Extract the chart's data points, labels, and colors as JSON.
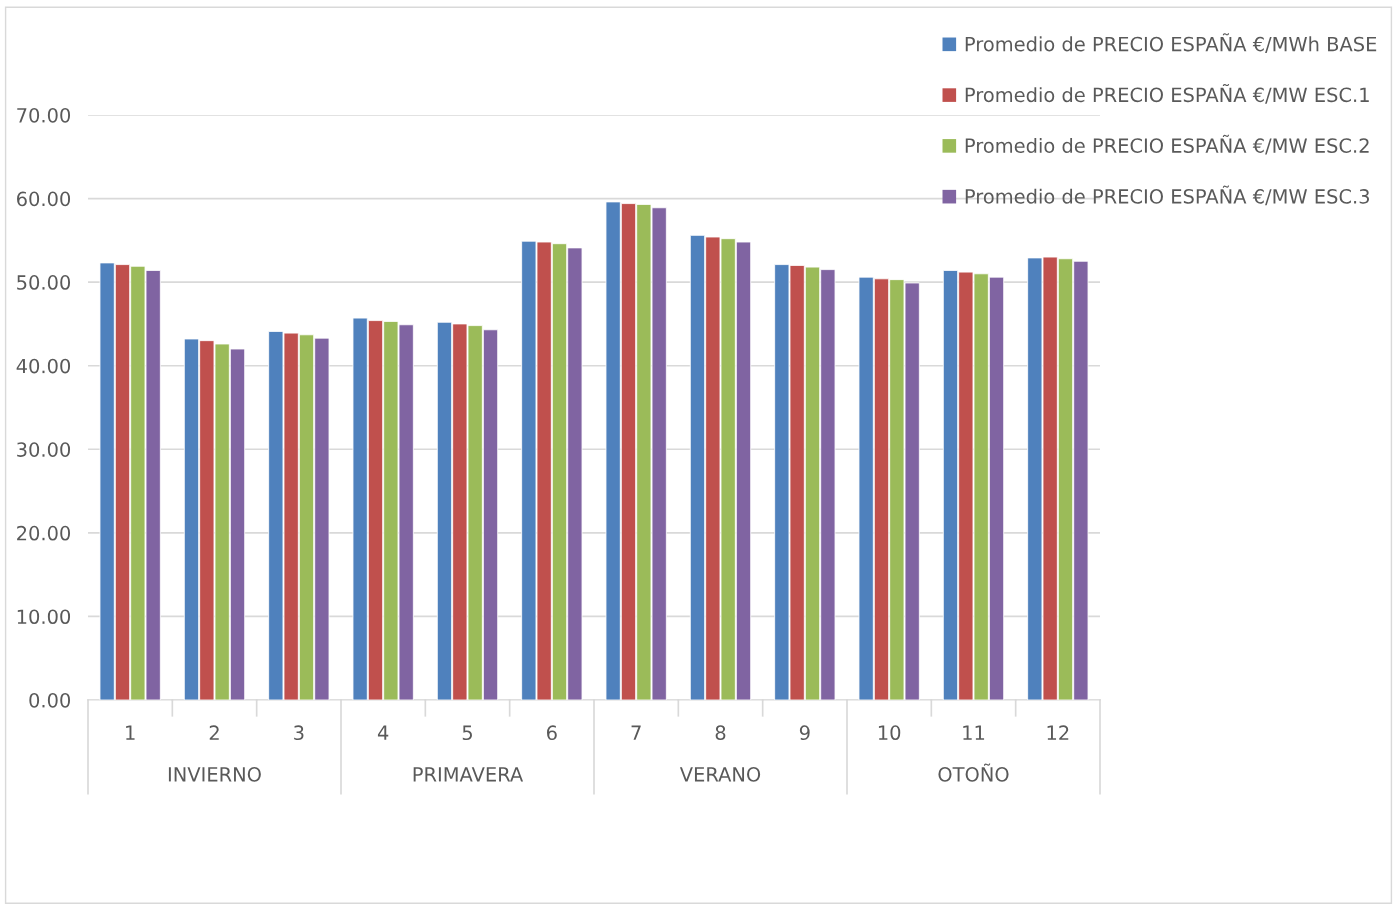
{
  "chart_data": {
    "type": "bar",
    "categories": [
      "1",
      "2",
      "3",
      "4",
      "5",
      "6",
      "7",
      "8",
      "9",
      "10",
      "11",
      "12"
    ],
    "series": [
      {
        "name": "Promedio de PRECIO ESPAÑA €/MWh BASE",
        "color": "#4f81bd",
        "values": [
          52.3,
          43.2,
          44.1,
          45.7,
          45.2,
          54.9,
          59.6,
          55.6,
          52.1,
          50.6,
          51.4,
          52.9
        ]
      },
      {
        "name": "Promedio de PRECIO ESPAÑA €/MW ESC.1",
        "color": "#c0504d",
        "values": [
          52.1,
          43.0,
          43.9,
          45.4,
          45.0,
          54.8,
          59.4,
          55.4,
          52.0,
          50.4,
          51.2,
          53.0
        ]
      },
      {
        "name": "Promedio de PRECIO ESPAÑA €/MW ESC.2",
        "color": "#9bbb59",
        "values": [
          51.9,
          42.6,
          43.7,
          45.3,
          44.8,
          54.6,
          59.3,
          55.2,
          51.8,
          50.3,
          51.0,
          52.8
        ]
      },
      {
        "name": "Promedio de PRECIO ESPAÑA €/MW ESC.3",
        "color": "#8064a2",
        "values": [
          51.4,
          42.0,
          43.3,
          44.9,
          44.3,
          54.1,
          58.9,
          54.8,
          51.5,
          49.9,
          50.6,
          52.5
        ]
      }
    ],
    "annotations": [
      "INVIERNO",
      "PRIMAVERA",
      "VERANO",
      "OTOÑO"
    ],
    "ylim": [
      0,
      70
    ],
    "yticks": [
      {
        "value": 0,
        "label": "0.00"
      },
      {
        "value": 10,
        "label": "10.00"
      },
      {
        "value": 20,
        "label": "20.00"
      },
      {
        "value": 30,
        "label": "30.00"
      },
      {
        "value": 40,
        "label": "40.00"
      },
      {
        "value": 50,
        "label": "50.00"
      },
      {
        "value": 60,
        "label": "60.00"
      },
      {
        "value": 70,
        "label": "70.00"
      }
    ],
    "grid": "y",
    "legend": "top right"
  }
}
